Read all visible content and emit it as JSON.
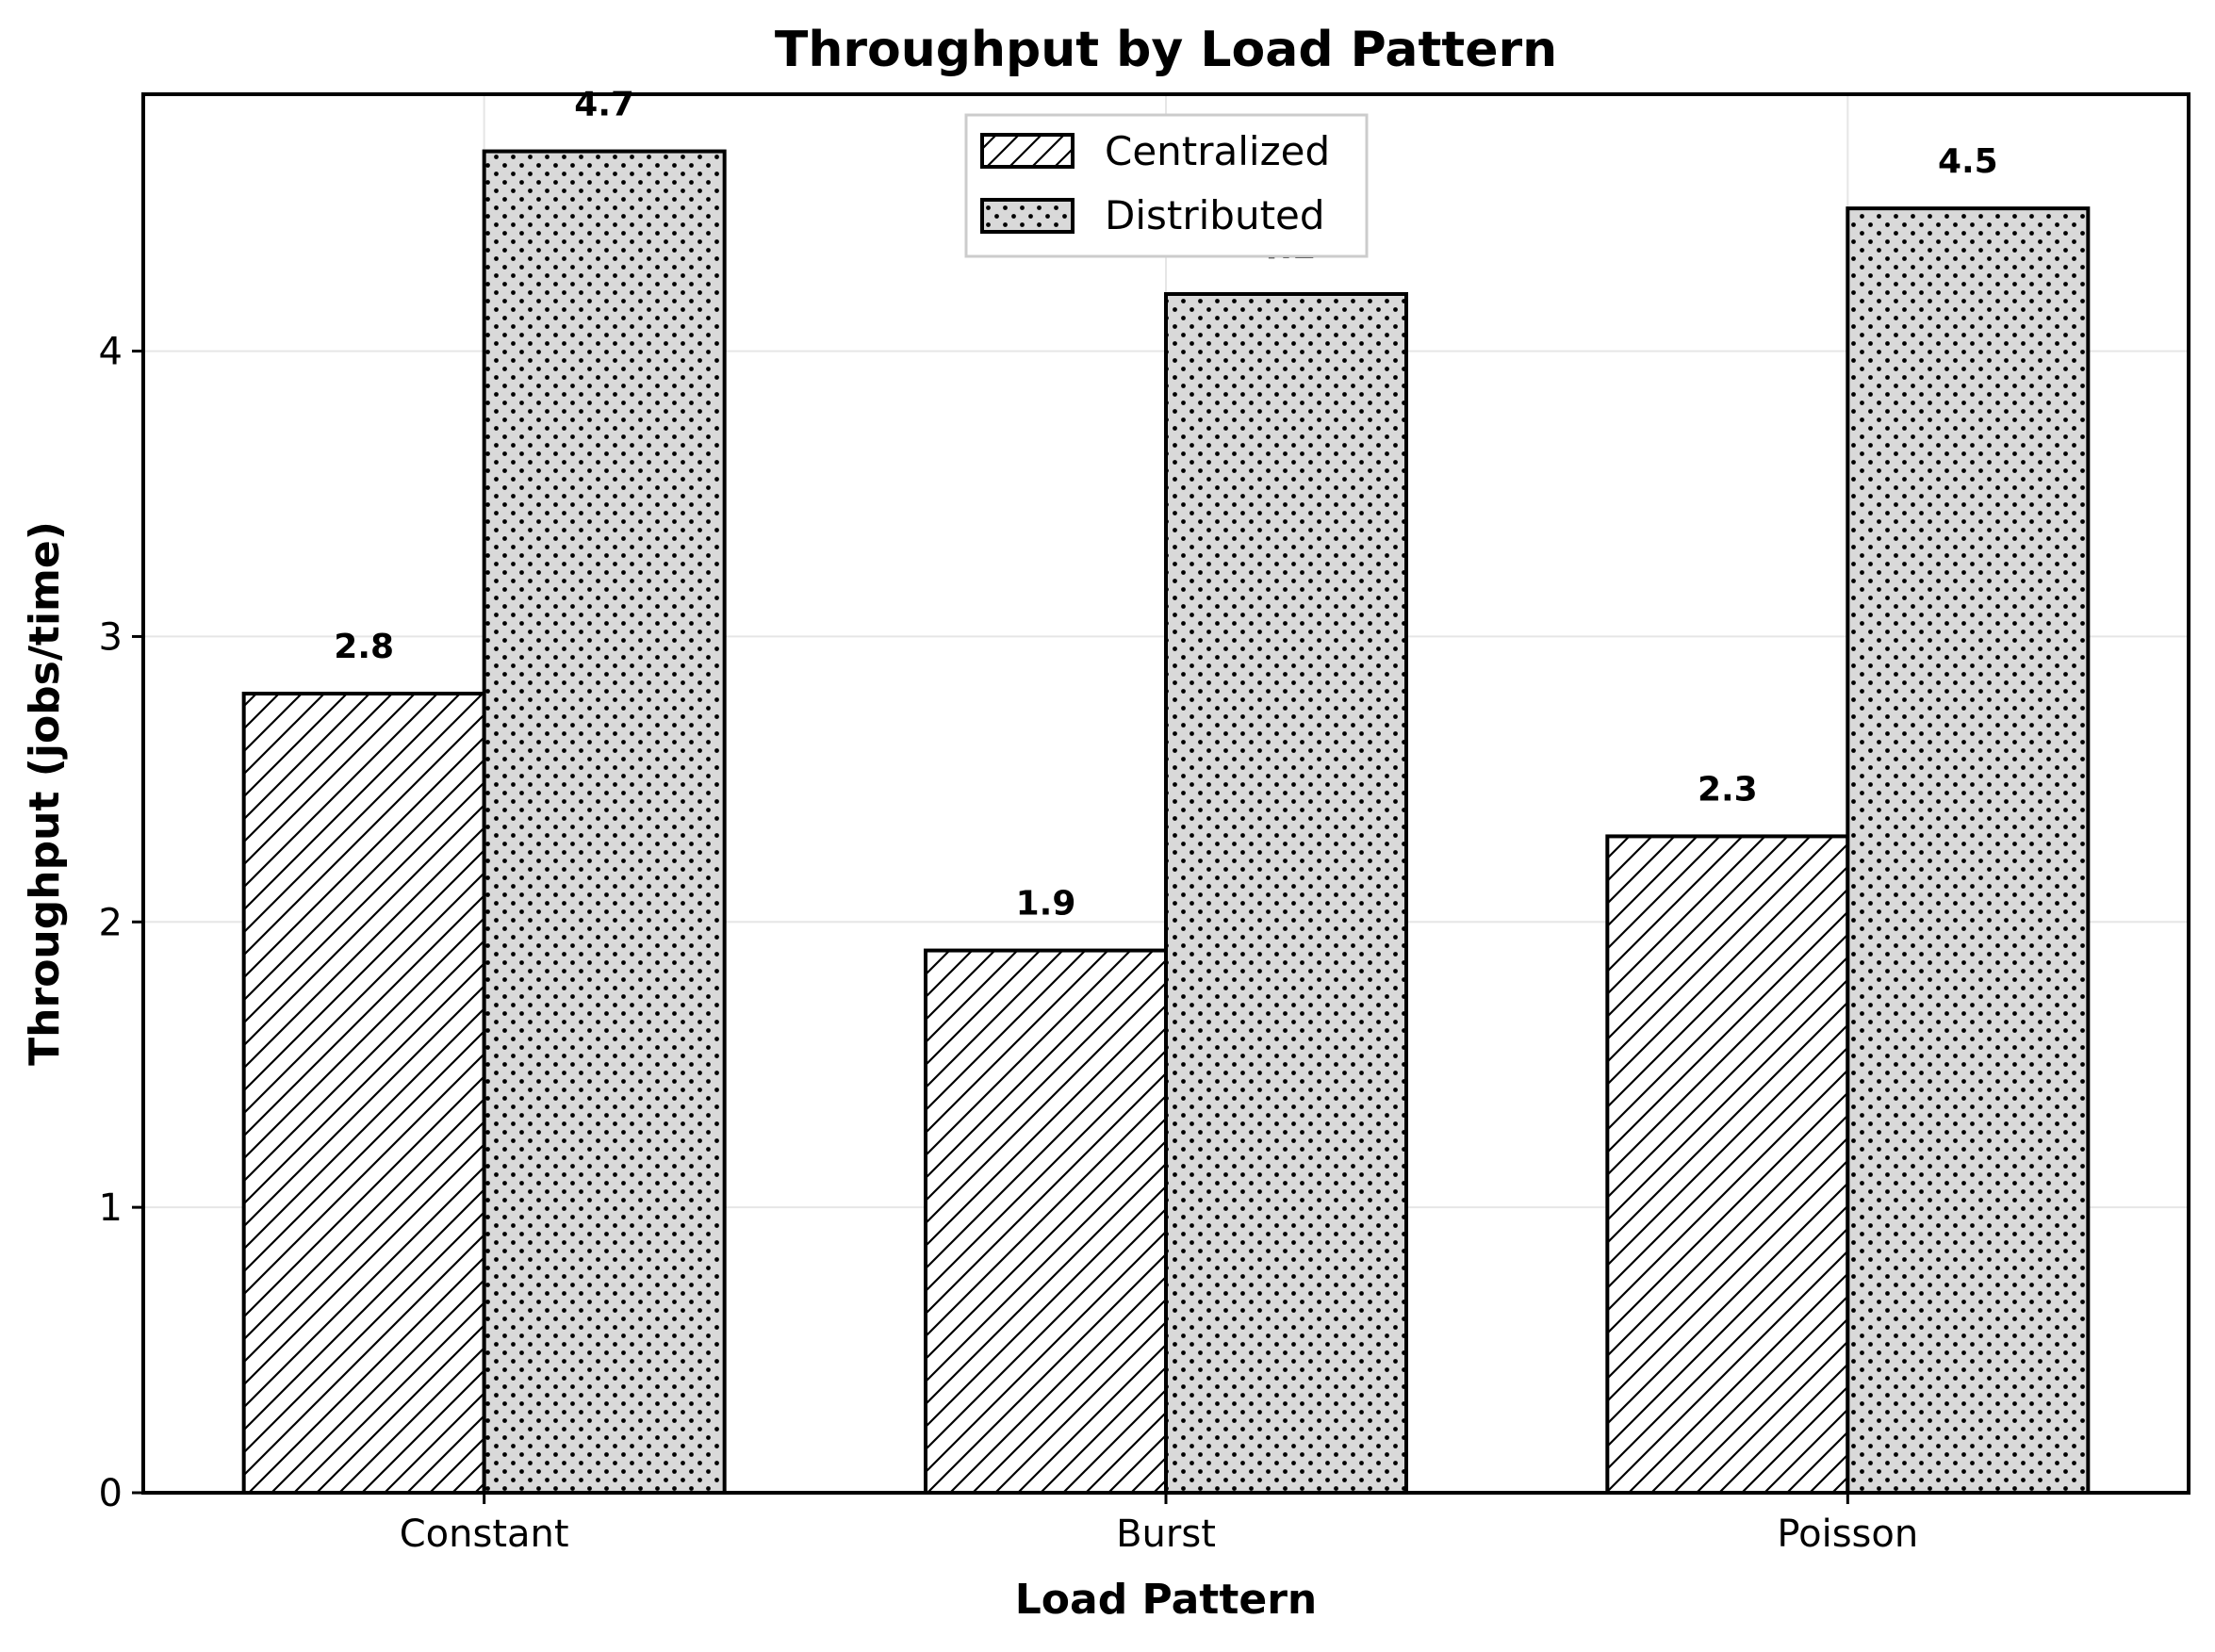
{
  "chart_data": {
    "type": "bar",
    "title": "Throughput by Load Pattern",
    "xlabel": "Load Pattern",
    "ylabel": "Throughput (jobs/time)",
    "categories": [
      "Constant",
      "Burst",
      "Poisson"
    ],
    "series": [
      {
        "name": "Centralized",
        "values": [
          2.8,
          1.9,
          2.3
        ],
        "pattern": "hatch",
        "fill": "#ffffff"
      },
      {
        "name": "Distributed",
        "values": [
          4.7,
          4.2,
          4.5
        ],
        "pattern": "dots",
        "fill": "#d9d9d9"
      }
    ],
    "value_labels": [
      [
        "2.8",
        "1.9",
        "2.3"
      ],
      [
        "4.7",
        "4.2",
        "4.5"
      ]
    ],
    "yticks": [
      0,
      1,
      2,
      3,
      4
    ],
    "ytick_labels": [
      "0",
      "1",
      "2",
      "3",
      "4"
    ],
    "ylim": [
      0,
      4.9
    ],
    "grid": true,
    "legend_position": "top-center",
    "colors": {
      "edge": "#000000",
      "grid": "#e6e6e6",
      "background": "#ffffff"
    }
  }
}
